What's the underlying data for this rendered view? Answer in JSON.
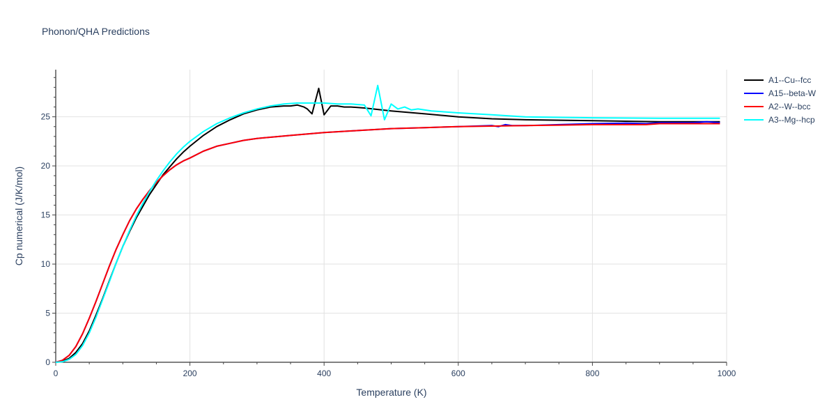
{
  "chart_data": {
    "type": "line",
    "title": "Phonon/QHA Predictions",
    "xlabel": "Temperature (K)",
    "ylabel": "Cp numerical (J/K/mol)",
    "xlim": [
      0,
      1000
    ],
    "ylim": [
      0,
      29.8
    ],
    "xticks": [
      0,
      200,
      400,
      600,
      800,
      1000
    ],
    "yticks": [
      0,
      5,
      10,
      15,
      20,
      25
    ],
    "grid": true,
    "legend_position": "top-right",
    "series": [
      {
        "name": "A1--Cu--fcc",
        "color": "#000000",
        "x": [
          0,
          10,
          20,
          30,
          40,
          50,
          60,
          70,
          80,
          90,
          100,
          110,
          120,
          130,
          140,
          150,
          160,
          170,
          180,
          190,
          200,
          220,
          240,
          260,
          280,
          300,
          320,
          340,
          350,
          360,
          370,
          375,
          382,
          392,
          400,
          410,
          420,
          430,
          440,
          460,
          500,
          550,
          600,
          650,
          700,
          800,
          900,
          990
        ],
        "y": [
          0,
          0.1,
          0.4,
          1.0,
          1.9,
          3.2,
          4.8,
          6.5,
          8.3,
          10.1,
          11.8,
          13.3,
          14.7,
          15.9,
          17.1,
          18.1,
          19.1,
          19.9,
          20.7,
          21.4,
          22.0,
          23.1,
          24.0,
          24.7,
          25.3,
          25.7,
          26.0,
          26.1,
          26.1,
          26.2,
          26.0,
          25.8,
          25.3,
          27.9,
          25.2,
          26.1,
          26.1,
          26.0,
          26.0,
          25.9,
          25.6,
          25.3,
          25.0,
          24.8,
          24.7,
          24.6,
          24.5,
          24.5
        ]
      },
      {
        "name": "A15--beta-W",
        "color": "#0000ff",
        "x": [
          0,
          10,
          20,
          30,
          40,
          50,
          60,
          70,
          80,
          90,
          100,
          110,
          120,
          130,
          140,
          150,
          160,
          170,
          180,
          190,
          200,
          220,
          240,
          260,
          280,
          300,
          350,
          400,
          450,
          500,
          550,
          600,
          650,
          660,
          670,
          680,
          700,
          750,
          800,
          850,
          880,
          900,
          950,
          970,
          990
        ],
        "y": [
          0,
          0.2,
          0.7,
          1.6,
          2.9,
          4.5,
          6.2,
          8.0,
          9.8,
          11.5,
          13.0,
          14.4,
          15.6,
          16.6,
          17.5,
          18.3,
          19.0,
          19.6,
          20.1,
          20.5,
          20.8,
          21.5,
          22.0,
          22.3,
          22.6,
          22.8,
          23.1,
          23.4,
          23.6,
          23.8,
          23.9,
          24.0,
          24.1,
          24.0,
          24.2,
          24.1,
          24.1,
          24.2,
          24.3,
          24.35,
          24.3,
          24.4,
          24.4,
          24.5,
          24.4
        ]
      },
      {
        "name": "A2--W--bcc",
        "color": "#ff0000",
        "x": [
          0,
          10,
          20,
          30,
          40,
          50,
          60,
          70,
          80,
          90,
          100,
          110,
          120,
          130,
          140,
          150,
          160,
          170,
          180,
          190,
          200,
          220,
          240,
          260,
          280,
          300,
          350,
          400,
          450,
          500,
          550,
          600,
          650,
          700,
          750,
          800,
          850,
          880,
          900,
          950,
          990
        ],
        "y": [
          0,
          0.2,
          0.7,
          1.6,
          2.9,
          4.5,
          6.2,
          8.0,
          9.8,
          11.5,
          13.0,
          14.4,
          15.6,
          16.6,
          17.5,
          18.3,
          19.0,
          19.6,
          20.1,
          20.5,
          20.8,
          21.5,
          22.0,
          22.3,
          22.6,
          22.8,
          23.1,
          23.4,
          23.6,
          23.8,
          23.9,
          24.0,
          24.05,
          24.1,
          24.15,
          24.2,
          24.2,
          24.2,
          24.3,
          24.3,
          24.3
        ]
      },
      {
        "name": "A3--Mg--hcp",
        "color": "#00ffff",
        "x": [
          0,
          10,
          20,
          30,
          40,
          50,
          60,
          70,
          80,
          90,
          100,
          110,
          120,
          130,
          140,
          150,
          160,
          170,
          180,
          190,
          200,
          220,
          240,
          260,
          280,
          300,
          320,
          340,
          360,
          380,
          400,
          420,
          440,
          460,
          470,
          480,
          490,
          500,
          510,
          520,
          530,
          540,
          560,
          600,
          650,
          700,
          800,
          900,
          990
        ],
        "y": [
          0,
          0.05,
          0.3,
          0.8,
          1.7,
          3.0,
          4.6,
          6.4,
          8.2,
          10.1,
          11.8,
          13.4,
          14.9,
          16.2,
          17.4,
          18.5,
          19.5,
          20.4,
          21.2,
          21.9,
          22.5,
          23.5,
          24.3,
          24.9,
          25.4,
          25.8,
          26.1,
          26.3,
          26.4,
          26.4,
          26.4,
          26.3,
          26.3,
          26.2,
          25.1,
          28.2,
          24.7,
          26.3,
          25.8,
          26.0,
          25.7,
          25.8,
          25.6,
          25.4,
          25.2,
          25.0,
          24.9,
          24.85,
          24.85
        ]
      }
    ]
  }
}
